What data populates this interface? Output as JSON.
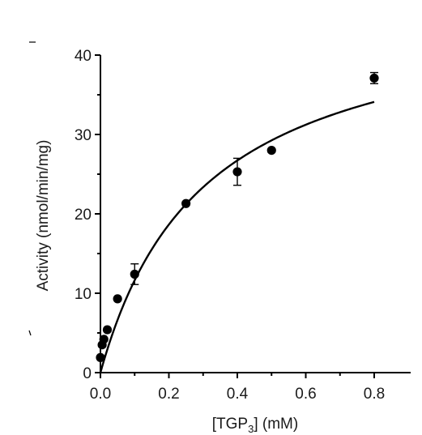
{
  "chart_data": {
    "type": "scatter",
    "title": "",
    "xlabel_main": "[TGP",
    "xlabel_sub": "3",
    "xlabel_tail": "] (mM)",
    "ylabel": "Activity (nmol/min/mg)",
    "xlim": [
      0,
      0.85
    ],
    "ylim": [
      0,
      40
    ],
    "x_ticks": [
      0.0,
      0.2,
      0.4,
      0.6,
      0.8
    ],
    "x_tick_labels": [
      "0.0",
      "0.2",
      "0.4",
      "0.6",
      "0.8"
    ],
    "y_ticks": [
      0,
      10,
      20,
      30,
      40
    ],
    "y_tick_labels": [
      "0",
      "10",
      "20",
      "30",
      "40"
    ],
    "grid": false,
    "legend": "none",
    "points": [
      {
        "x": 0.0,
        "y": 1.9
      },
      {
        "x": 0.005,
        "y": 3.5
      },
      {
        "x": 0.01,
        "y": 4.2
      },
      {
        "x": 0.02,
        "y": 5.4
      },
      {
        "x": 0.05,
        "y": 9.3
      },
      {
        "x": 0.1,
        "y": 12.4,
        "err": 1.3
      },
      {
        "x": 0.25,
        "y": 21.3
      },
      {
        "x": 0.4,
        "y": 25.3,
        "err": 1.7
      },
      {
        "x": 0.5,
        "y": 28.0
      },
      {
        "x": 0.8,
        "y": 37.1,
        "err": 0.7
      }
    ],
    "fit": {
      "model": "michaelis-menten",
      "vmax": 47.1,
      "km": 0.305,
      "x_range": [
        0.0,
        0.8
      ]
    },
    "colors": {
      "marker": "#000000",
      "curve": "#000000"
    }
  }
}
